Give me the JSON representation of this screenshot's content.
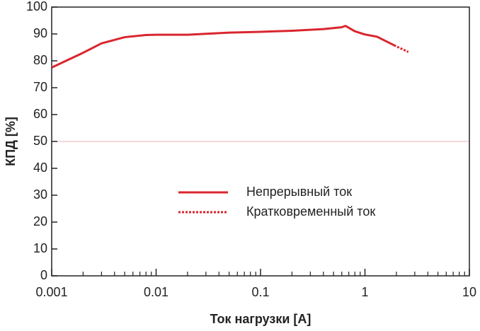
{
  "chart_data": {
    "type": "line",
    "xlabel": "Ток нагрузки [А]",
    "ylabel": "КПД [%]",
    "xscale": "log",
    "xlim": [
      0.001,
      10
    ],
    "ylim": [
      0,
      100
    ],
    "xticks": [
      0.001,
      0.01,
      0.1,
      1,
      10
    ],
    "xminorticks": [
      0.002,
      0.003,
      0.004,
      0.005,
      0.006,
      0.007,
      0.008,
      0.009,
      0.02,
      0.03,
      0.04,
      0.05,
      0.06,
      0.07,
      0.08,
      0.09,
      0.2,
      0.3,
      0.4,
      0.5,
      0.6,
      0.7,
      0.8,
      0.9,
      2,
      3,
      4,
      5,
      6,
      7,
      8,
      9
    ],
    "yticks": [
      0,
      10,
      20,
      30,
      40,
      50,
      60,
      70,
      80,
      90,
      100
    ],
    "hline": 50,
    "hline_color": "#e8b0b0",
    "legend": "center",
    "series": [
      {
        "name": "Непрерывный ток",
        "color": "#d9262e",
        "style": "solid",
        "x": [
          0.001,
          0.002,
          0.003,
          0.005,
          0.008,
          0.01,
          0.02,
          0.05,
          0.1,
          0.2,
          0.4,
          0.6,
          0.65,
          0.8,
          1,
          1.3,
          1.9
        ],
        "values": [
          77.5,
          83,
          86.5,
          88.8,
          89.6,
          89.7,
          89.7,
          90.5,
          90.8,
          91.2,
          91.8,
          92.5,
          93,
          91,
          89.8,
          89,
          85.8
        ]
      },
      {
        "name": "Кратковременный ток",
        "color": "#d9262e",
        "style": "dotted",
        "x": [
          1.9,
          2.6
        ],
        "values": [
          85.8,
          83.3
        ]
      }
    ]
  }
}
